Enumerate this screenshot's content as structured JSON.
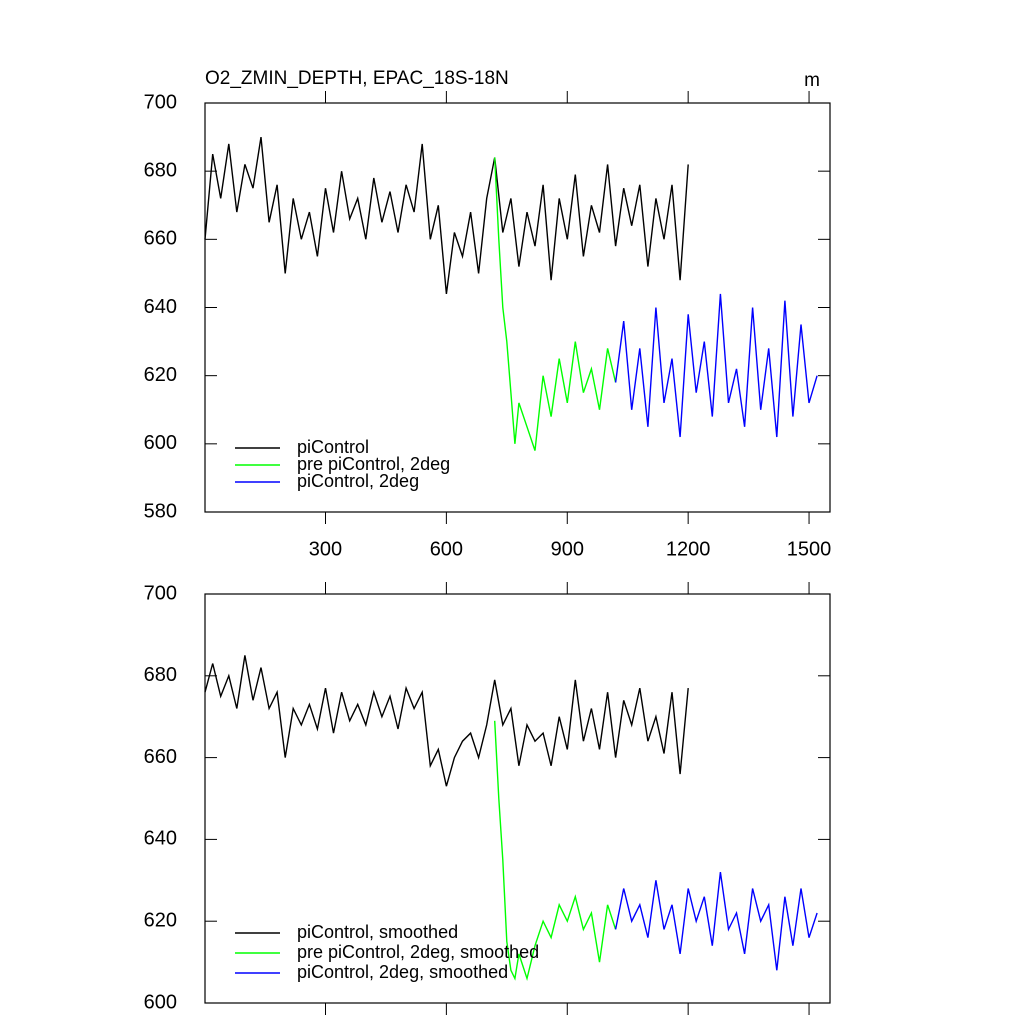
{
  "chart_data": [
    {
      "type": "line",
      "title": "O2_ZMIN_DEPTH, EPAC_18S-18N",
      "units": "m",
      "xlim": [
        1,
        1552
      ],
      "xticks": [
        300,
        600,
        900,
        1200,
        1500
      ],
      "ylim": [
        580,
        700
      ],
      "yticks": [
        580,
        600,
        620,
        640,
        660,
        680,
        700
      ],
      "legend": "lower left",
      "series": [
        {
          "name": "piControl",
          "color": "#000000",
          "x": [
            1,
            20,
            40,
            60,
            80,
            100,
            120,
            140,
            160,
            180,
            200,
            220,
            240,
            260,
            280,
            300,
            320,
            340,
            360,
            380,
            400,
            420,
            440,
            460,
            480,
            500,
            520,
            540,
            560,
            580,
            600,
            620,
            640,
            660,
            680,
            700,
            720,
            740,
            760,
            780,
            800,
            820,
            840,
            860,
            880,
            900,
            920,
            940,
            960,
            980,
            1000,
            1020,
            1040,
            1060,
            1080,
            1100,
            1120,
            1140,
            1160,
            1180,
            1200
          ],
          "values": [
            660,
            685,
            672,
            688,
            668,
            682,
            675,
            690,
            665,
            676,
            650,
            672,
            660,
            668,
            655,
            675,
            662,
            680,
            666,
            672,
            660,
            678,
            665,
            674,
            662,
            676,
            668,
            688,
            660,
            670,
            644,
            662,
            655,
            668,
            650,
            672,
            684,
            662,
            672,
            652,
            668,
            658,
            676,
            648,
            672,
            660,
            679,
            655,
            670,
            662,
            682,
            658,
            675,
            664,
            676,
            652,
            672,
            660,
            676,
            648,
            682
          ]
        },
        {
          "name": "pre piControl, 2deg",
          "color": "#00ff00",
          "x": [
            720,
            730,
            740,
            750,
            760,
            770,
            780,
            800,
            820,
            840,
            860,
            880,
            900,
            920,
            940,
            960,
            980,
            1000,
            1020
          ],
          "values": [
            684,
            660,
            640,
            630,
            615,
            600,
            612,
            605,
            598,
            620,
            608,
            625,
            612,
            630,
            615,
            622,
            610,
            628,
            618
          ]
        },
        {
          "name": "piControl, 2deg",
          "color": "#0000ff",
          "x": [
            1020,
            1040,
            1060,
            1080,
            1100,
            1120,
            1140,
            1160,
            1180,
            1200,
            1220,
            1240,
            1260,
            1280,
            1300,
            1320,
            1340,
            1360,
            1380,
            1400,
            1420,
            1440,
            1460,
            1480,
            1500,
            1520
          ],
          "values": [
            618,
            636,
            610,
            628,
            605,
            640,
            612,
            625,
            602,
            638,
            615,
            630,
            608,
            644,
            612,
            622,
            605,
            640,
            610,
            628,
            602,
            642,
            608,
            635,
            612,
            620
          ]
        }
      ]
    },
    {
      "type": "line",
      "xlim": [
        1,
        1552
      ],
      "ylim": [
        600,
        700
      ],
      "yticks": [
        600,
        620,
        640,
        660,
        680,
        700
      ],
      "legend": "lower left",
      "series": [
        {
          "name": "piControl, smoothed",
          "color": "#000000",
          "x": [
            1,
            20,
            40,
            60,
            80,
            100,
            120,
            140,
            160,
            180,
            200,
            220,
            240,
            260,
            280,
            300,
            320,
            340,
            360,
            380,
            400,
            420,
            440,
            460,
            480,
            500,
            520,
            540,
            560,
            580,
            600,
            620,
            640,
            660,
            680,
            700,
            720,
            740,
            760,
            780,
            800,
            820,
            840,
            860,
            880,
            900,
            920,
            940,
            960,
            980,
            1000,
            1020,
            1040,
            1060,
            1080,
            1100,
            1120,
            1140,
            1160,
            1180,
            1200
          ],
          "values": [
            676,
            683,
            675,
            680,
            672,
            685,
            674,
            682,
            672,
            676,
            660,
            672,
            668,
            673,
            667,
            677,
            666,
            676,
            669,
            673,
            668,
            676,
            670,
            675,
            667,
            677,
            672,
            676,
            658,
            662,
            653,
            660,
            664,
            666,
            660,
            668,
            679,
            668,
            672,
            658,
            668,
            664,
            666,
            658,
            670,
            662,
            679,
            664,
            672,
            662,
            676,
            660,
            674,
            668,
            677,
            664,
            670,
            661,
            676,
            656,
            677
          ]
        },
        {
          "name": "pre piControl, 2deg, smoothed",
          "color": "#00ff00",
          "x": [
            720,
            730,
            740,
            750,
            760,
            770,
            780,
            800,
            820,
            840,
            860,
            880,
            900,
            920,
            940,
            960,
            980,
            1000,
            1020
          ],
          "values": [
            669,
            650,
            635,
            615,
            608,
            606,
            612,
            606,
            614,
            620,
            616,
            624,
            620,
            626,
            618,
            622,
            610,
            624,
            618
          ]
        },
        {
          "name": "piControl, 2deg, smoothed",
          "color": "#0000ff",
          "x": [
            1020,
            1040,
            1060,
            1080,
            1100,
            1120,
            1140,
            1160,
            1180,
            1200,
            1220,
            1240,
            1260,
            1280,
            1300,
            1320,
            1340,
            1360,
            1380,
            1400,
            1420,
            1440,
            1460,
            1480,
            1500,
            1520
          ],
          "values": [
            618,
            628,
            620,
            624,
            616,
            630,
            618,
            624,
            612,
            628,
            620,
            626,
            614,
            632,
            618,
            622,
            612,
            628,
            620,
            624,
            608,
            626,
            614,
            628,
            616,
            622
          ]
        }
      ]
    }
  ]
}
